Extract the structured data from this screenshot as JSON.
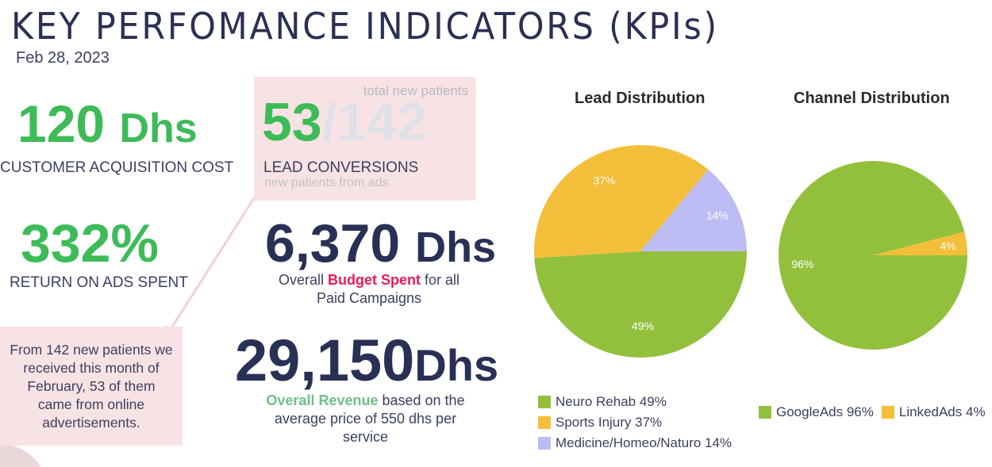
{
  "header": {
    "title": "KEY PERFOMANCE INDICATORS (KPIs)",
    "date": "Feb 28, 2023"
  },
  "kpis": {
    "cac": {
      "value": "120",
      "unit": "Dhs",
      "label": "CUSTOMER ACQUISITION COST"
    },
    "roas": {
      "value": "332%",
      "label": "RETURN ON ADS SPENT"
    },
    "leads": {
      "converted": "53",
      "slash": "/",
      "total": "142",
      "total_label": "total new patients",
      "label": "LEAD CONVERSIONS",
      "sublabel": "new patients from ads"
    },
    "budget": {
      "value": "6,370",
      "unit": "Dhs",
      "pre": "Overall ",
      "highlight": "Budget Spent",
      "post": " for all",
      "line2": "Paid Campaigns"
    },
    "revenue": {
      "value": "29,150",
      "unit": "Dhs",
      "highlight": "Overall Revenue",
      "post": " based on the",
      "line2": "average price of 550 dhs per",
      "line3": "service"
    },
    "note": "From 142 new patients we received this month of February, 53 of them came from online advertisements."
  },
  "colors": {
    "green": "#3dbb58",
    "navy": "#283155",
    "red": "#ee1a55",
    "pie_green": "#93c03c",
    "pie_yellow": "#f3bf3a",
    "pie_purple": "#bebcf5"
  },
  "chart_data": [
    {
      "type": "pie",
      "title": "Lead Distribution",
      "categories": [
        "Neuro Rehab",
        "Sports Injury",
        "Medicine/Homeo/Naturo"
      ],
      "values": [
        49,
        37,
        14
      ],
      "data_labels": [
        "49%",
        "37%",
        "14%"
      ],
      "legend": [
        "Neuro Rehab 49%",
        "Sports Injury 37%",
        "Medicine/Homeo/Naturo 14%"
      ],
      "legend_position": "bottom"
    },
    {
      "type": "pie",
      "title": "Channel Distribution",
      "categories": [
        "GoogleAds",
        "LinkedAds"
      ],
      "values": [
        96,
        4
      ],
      "data_labels": [
        "96%",
        "4%"
      ],
      "legend": [
        "GoogleAds 96%",
        "LinkedAds 4%"
      ],
      "legend_position": "bottom"
    }
  ]
}
